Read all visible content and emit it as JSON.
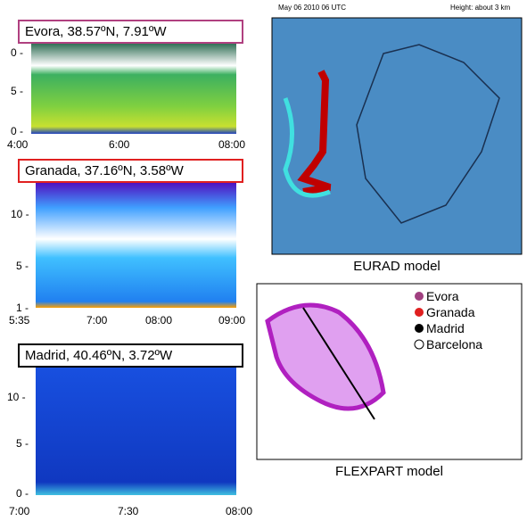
{
  "panels": [
    {
      "label": "Evora, 38.57ºN, 7.91ºW",
      "yticks": [
        "0 -",
        "5 -",
        "0 -"
      ],
      "xticks": [
        "4:00",
        "6:00",
        "08:00"
      ]
    },
    {
      "label": "Granada, 37.16ºN, 3.58ºW",
      "yticks": [
        "10 -",
        "5 -",
        "1 -"
      ],
      "xticks": [
        "5:35",
        "7:00",
        "08:00",
        "09:00"
      ]
    },
    {
      "label": "Madrid, 40.46ºN, 3.72ºW",
      "yticks": [
        "10 -",
        "5 -",
        "0 -"
      ],
      "xticks": [
        "7:00",
        "7:30",
        "08:00"
      ]
    }
  ],
  "eurad": {
    "header_left": "May 06 2010 06 UTC",
    "header_right": "Height: about 3 km",
    "caption": "EURAD model"
  },
  "flexpart": {
    "legend": [
      "Evora",
      "Granada",
      "Madrid",
      "Barcelona"
    ],
    "caption": "FLEXPART model"
  }
}
